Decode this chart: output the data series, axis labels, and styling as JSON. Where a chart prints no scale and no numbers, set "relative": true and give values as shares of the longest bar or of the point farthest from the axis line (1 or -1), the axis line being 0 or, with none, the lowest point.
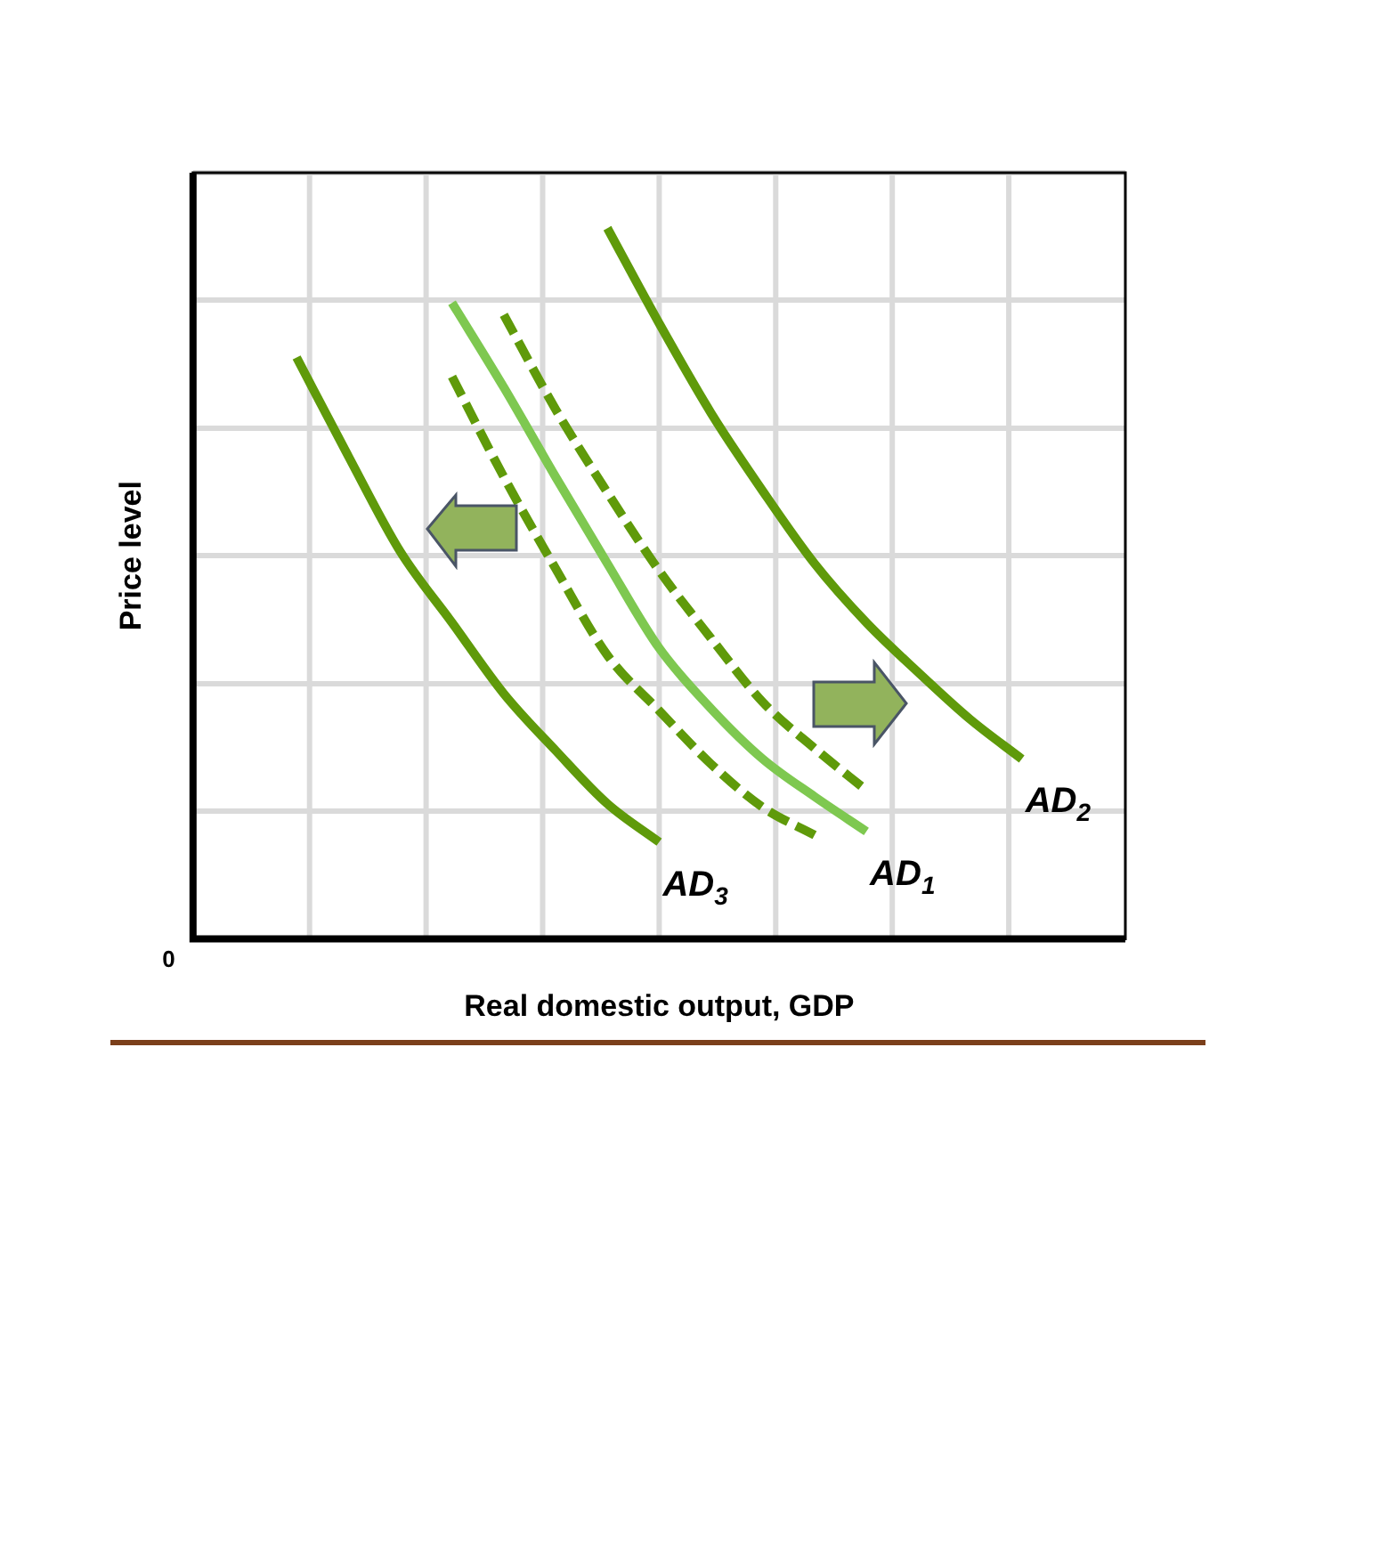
{
  "chart_data": {
    "type": "line",
    "relative": true,
    "xlabel": "Real domestic output, GDP",
    "ylabel": "Price level",
    "annotations": [
      "0"
    ],
    "grid": true,
    "legend": false,
    "marker": "none",
    "categories": [
      null,
      null,
      null,
      null,
      null,
      null,
      null,
      null,
      null,
      null,
      null,
      null,
      null,
      null,
      null,
      null,
      null,
      null,
      null
    ],
    "series": [
      {
        "name": "AD$_{2}$",
        "color": "#5f9a0a",
        "line_style": "solid",
        "values": [
          null,
          null,
          null,
          null,
          null,
          null,
          null,
          null,
          1.0,
          0.866,
          0.74,
          0.63,
          0.528,
          0.445,
          0.375,
          0.309,
          0.253,
          null,
          null
        ]
      },
      {
        "name": "AD$_{1}$",
        "color": "#7ec850",
        "line_style": "solid",
        "values": [
          null,
          null,
          null,
          null,
          null,
          0.895,
          0.776,
          0.65,
          0.528,
          0.409,
          0.324,
          0.253,
          0.2,
          0.151,
          null,
          null,
          null,
          null,
          null
        ]
      },
      {
        "color": "#5f9a0a",
        "line_style": "dashed",
        "values": [
          null,
          null,
          null,
          null,
          null,
          0.791,
          0.65,
          0.521,
          0.399,
          0.321,
          0.246,
          0.185,
          0.146,
          null,
          null,
          null,
          null,
          null,
          null
        ]
      },
      {
        "color": "#5f9a0a",
        "line_style": "dashed",
        "values": [
          null,
          null,
          null,
          null,
          null,
          null,
          0.878,
          0.745,
          0.628,
          0.518,
          0.423,
          0.333,
          0.268,
          0.209,
          null,
          null,
          null,
          null,
          null
        ]
      },
      {
        "name": "AD$_{3}$",
        "color": "#5f9a0a",
        "line_style": "solid",
        "values": [
          null,
          null,
          0.818,
          0.679,
          0.545,
          0.445,
          0.345,
          0.265,
          0.19,
          0.136,
          null,
          null,
          null,
          null,
          null,
          null,
          null,
          null,
          null
        ]
      }
    ]
  }
}
